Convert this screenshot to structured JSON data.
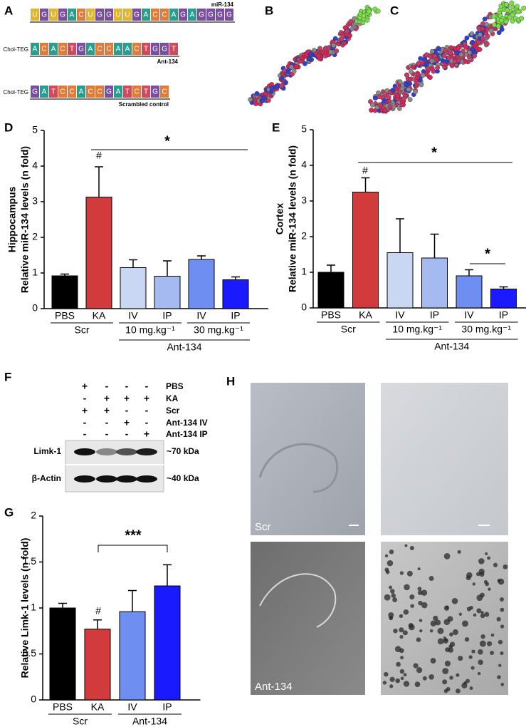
{
  "panel_labels": [
    "A",
    "B",
    "C",
    "D",
    "E",
    "F",
    "G",
    "H"
  ],
  "panel_a": {
    "sequences": [
      {
        "name": "miR-134",
        "letters": [
          "U",
          "G",
          "U",
          "G",
          "A",
          "C",
          "U",
          "G",
          "G",
          "U",
          "U",
          "G",
          "A",
          "C",
          "C",
          "A",
          "G",
          "A",
          "G",
          "G",
          "G",
          "G"
        ]
      },
      {
        "prefix": "Chol-TEG",
        "name": "Ant-134",
        "letters": [
          "A",
          "C",
          "A",
          "C",
          "T",
          "G",
          "A",
          "C",
          "C",
          "A",
          "A",
          "C",
          "T",
          "G",
          "G",
          "T"
        ]
      },
      {
        "prefix": "Chol-TEG",
        "name": "Scrambled control",
        "letters": [
          "G",
          "A",
          "T",
          "C",
          "C",
          "A",
          "C",
          "C",
          "G",
          "A",
          "T",
          "C",
          "T",
          "G",
          "C"
        ]
      }
    ]
  },
  "chart_data": [
    {
      "type": "bar",
      "ylabel": [
        "Hippocampus",
        "Relative miR-134 levels (n fold)"
      ],
      "categories": [
        "PBS",
        "KA",
        "IV",
        "IP",
        "IV",
        "IP"
      ],
      "values": [
        0.92,
        3.13,
        1.15,
        0.91,
        1.38,
        0.81
      ],
      "errors": [
        0.05,
        0.85,
        0.22,
        0.43,
        0.1,
        0.08
      ],
      "colors": [
        "#000000",
        "#d13b3b",
        "#c9d7f3",
        "#a5baf1",
        "#6f8ef2",
        "#1a1aff"
      ],
      "ylim": [
        0,
        5
      ],
      "yticks": [
        0,
        1,
        2,
        3,
        4,
        5
      ],
      "group_labels": [
        "Scr",
        "10 mg.kg⁻¹",
        "30 mg.kg⁻¹",
        "Ant-134"
      ],
      "annotations": [
        "#",
        "*"
      ]
    },
    {
      "type": "bar",
      "ylabel": [
        "Cortex",
        "Relative miR-134 levels (n fold)"
      ],
      "categories": [
        "PBS",
        "KA",
        "IV",
        "IP",
        "IV",
        "IP"
      ],
      "values": [
        1.0,
        3.25,
        1.55,
        1.4,
        0.9,
        0.53
      ],
      "errors": [
        0.2,
        0.4,
        0.95,
        0.67,
        0.17,
        0.06
      ],
      "colors": [
        "#000000",
        "#d13b3b",
        "#c9d7f3",
        "#a5baf1",
        "#6f8ef2",
        "#1a1aff"
      ],
      "ylim": [
        0,
        5
      ],
      "yticks": [
        0,
        1,
        2,
        3,
        4,
        5
      ],
      "group_labels": [
        "Scr",
        "10 mg.kg⁻¹",
        "30 mg.kg⁻¹",
        "Ant-134"
      ],
      "annotations": [
        "#",
        "*",
        "*"
      ]
    },
    {
      "type": "bar",
      "ylabel": [
        "Relative Limk-1 levels (n fold)"
      ],
      "categories": [
        "PBS",
        "KA",
        "IV",
        "IP"
      ],
      "values": [
        1.0,
        0.77,
        0.96,
        1.24
      ],
      "errors": [
        0.05,
        0.1,
        0.23,
        0.23
      ],
      "colors": [
        "#000000",
        "#d13b3b",
        "#6f8ef2",
        "#1a1aff"
      ],
      "ylim": [
        0,
        2
      ],
      "yticks": [
        0,
        0.5,
        1,
        1.5,
        2
      ],
      "group_labels": [
        "Scr",
        "Ant-134"
      ],
      "annotations": [
        "#",
        "***"
      ]
    }
  ],
  "panel_f": {
    "conditions": [
      "PBS",
      "KA",
      "Scr",
      "Ant-134 IV",
      "Ant-134 IP"
    ],
    "signs": [
      [
        "+",
        "-",
        "-",
        "-"
      ],
      [
        "-",
        "+",
        "+",
        "+"
      ],
      [
        "+",
        "+",
        "-",
        "-"
      ],
      [
        "-",
        "-",
        "+",
        "-"
      ],
      [
        "-",
        "-",
        "-",
        "+"
      ]
    ],
    "bands": [
      {
        "name": "Limk-1",
        "size": "~70 kDa"
      },
      {
        "name": "β-Actin",
        "size": "~40 kDa"
      }
    ]
  },
  "panel_h": {
    "labels": [
      "Scr",
      "Ant-134"
    ]
  }
}
